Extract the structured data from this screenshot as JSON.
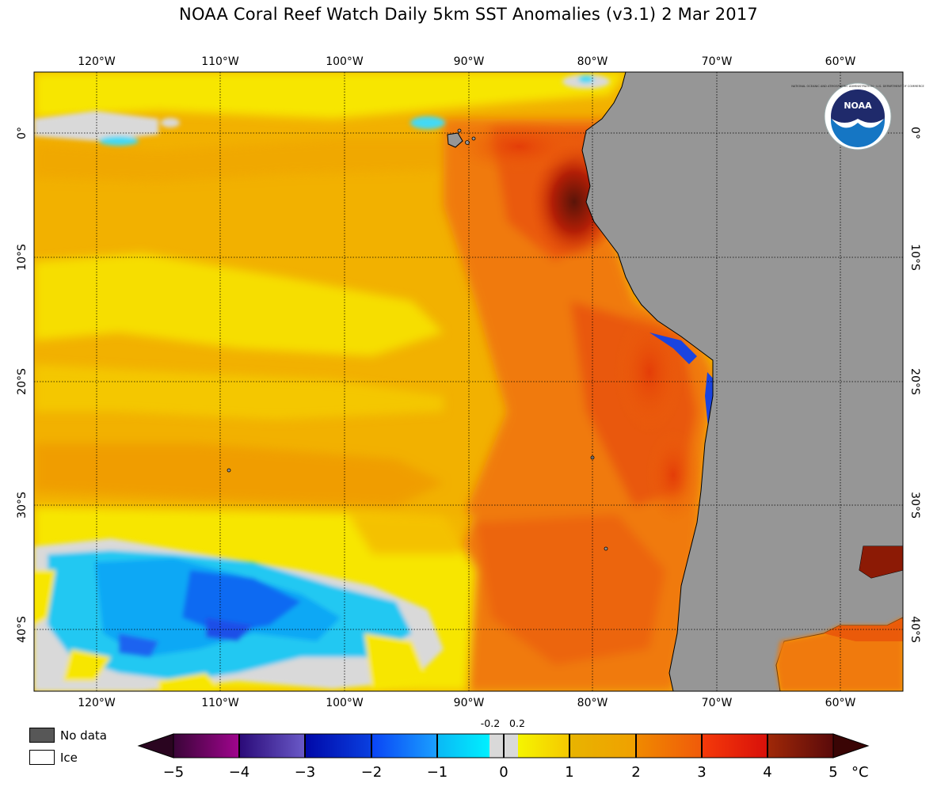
{
  "title": "NOAA Coral Reef Watch Daily 5km SST Anomalies  (v3.1)   2 Mar 2017",
  "logo": {
    "text": "NOAA",
    "ring_text": "NATIONAL OCEANIC AND ATMOSPHERIC ADMINISTRATION · U.S. DEPARTMENT OF COMMERCE"
  },
  "map": {
    "lon_labels": [
      "120°W",
      "110°W",
      "100°W",
      "90°W",
      "80°W",
      "70°W",
      "60°W"
    ],
    "lat_labels": [
      "0°",
      "10°S",
      "20°S",
      "30°S",
      "40°S"
    ],
    "colors": {
      "land": "#969696",
      "nodata": "#575757",
      "ice": "#ffffff",
      "neutral": "#d9d9d9"
    }
  },
  "legend": {
    "nodata_label": "No data",
    "ice_label": "Ice"
  },
  "colorbar": {
    "ticks": [
      "−5",
      "−4",
      "−3",
      "−2",
      "−1",
      "0",
      "1",
      "2",
      "3",
      "4",
      "5"
    ],
    "small_ticks": [
      "-0.2",
      "0.2"
    ],
    "unit": "°C"
  }
}
